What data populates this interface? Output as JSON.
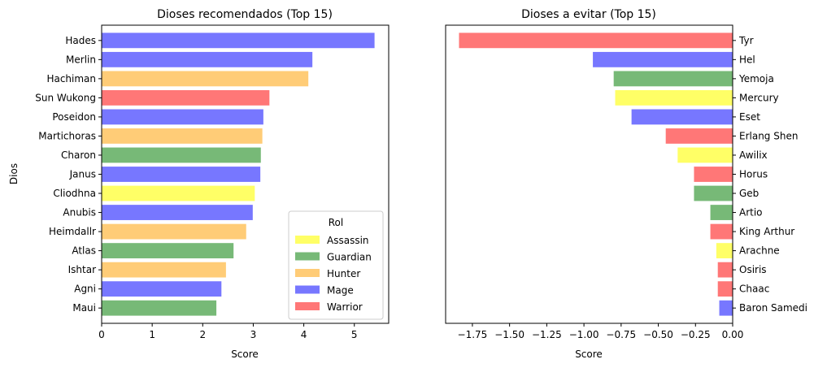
{
  "colors": {
    "Assassin": "#ffff66",
    "Guardian": "#77b977",
    "Hunter": "#ffcc77",
    "Mage": "#7777ff",
    "Warrior": "#ff7777"
  },
  "chart_data": [
    {
      "type": "bar",
      "orientation": "horizontal",
      "title": "Dioses recomendados (Top 15)",
      "xlabel": "Score",
      "ylabel": "Dios",
      "xlim": [
        0,
        5.68
      ],
      "xticks": [
        0,
        1,
        2,
        3,
        4,
        5
      ],
      "xtick_labels": [
        "0",
        "1",
        "2",
        "3",
        "4",
        "5"
      ],
      "grid": false,
      "legend": {
        "title": "Rol",
        "position": "lower-right",
        "entries": [
          "Assassin",
          "Guardian",
          "Hunter",
          "Mage",
          "Warrior"
        ]
      },
      "categories": [
        "Hades",
        "Merlin",
        "Hachiman",
        "Sun Wukong",
        "Poseidon",
        "Martichoras",
        "Charon",
        "Janus",
        "Cliodhna",
        "Anubis",
        "Heimdallr",
        "Atlas",
        "Ishtar",
        "Agni",
        "Maui"
      ],
      "values": [
        5.4,
        4.17,
        4.09,
        3.32,
        3.2,
        3.18,
        3.15,
        3.14,
        3.03,
        2.99,
        2.86,
        2.61,
        2.46,
        2.37,
        2.27
      ],
      "roles": [
        "Mage",
        "Mage",
        "Hunter",
        "Warrior",
        "Mage",
        "Hunter",
        "Guardian",
        "Mage",
        "Assassin",
        "Mage",
        "Hunter",
        "Guardian",
        "Hunter",
        "Mage",
        "Guardian"
      ]
    },
    {
      "type": "bar",
      "orientation": "horizontal",
      "title": "Dioses a evitar (Top 15)",
      "xlabel": "Score",
      "xlim": [
        -1.93,
        0
      ],
      "xticks": [
        -1.75,
        -1.5,
        -1.25,
        -1.0,
        -0.75,
        -0.5,
        -0.25,
        0.0
      ],
      "xtick_labels": [
        "−1.75",
        "−1.50",
        "−1.25",
        "−1.00",
        "−0.75",
        "−0.50",
        "−0.25",
        "0.00"
      ],
      "ytick_position": "right",
      "grid": false,
      "categories": [
        "Tyr",
        "Hel",
        "Yemoja",
        "Mercury",
        "Eset",
        "Erlang Shen",
        "Awilix",
        "Horus",
        "Geb",
        "Artio",
        "King Arthur",
        "Arachne",
        "Osiris",
        "Chaac",
        "Baron Samedi"
      ],
      "values": [
        -1.84,
        -0.94,
        -0.8,
        -0.79,
        -0.68,
        -0.45,
        -0.37,
        -0.26,
        -0.26,
        -0.15,
        -0.15,
        -0.11,
        -0.1,
        -0.1,
        -0.09
      ],
      "roles": [
        "Warrior",
        "Mage",
        "Guardian",
        "Assassin",
        "Mage",
        "Warrior",
        "Assassin",
        "Warrior",
        "Guardian",
        "Guardian",
        "Warrior",
        "Assassin",
        "Warrior",
        "Warrior",
        "Mage"
      ]
    }
  ]
}
